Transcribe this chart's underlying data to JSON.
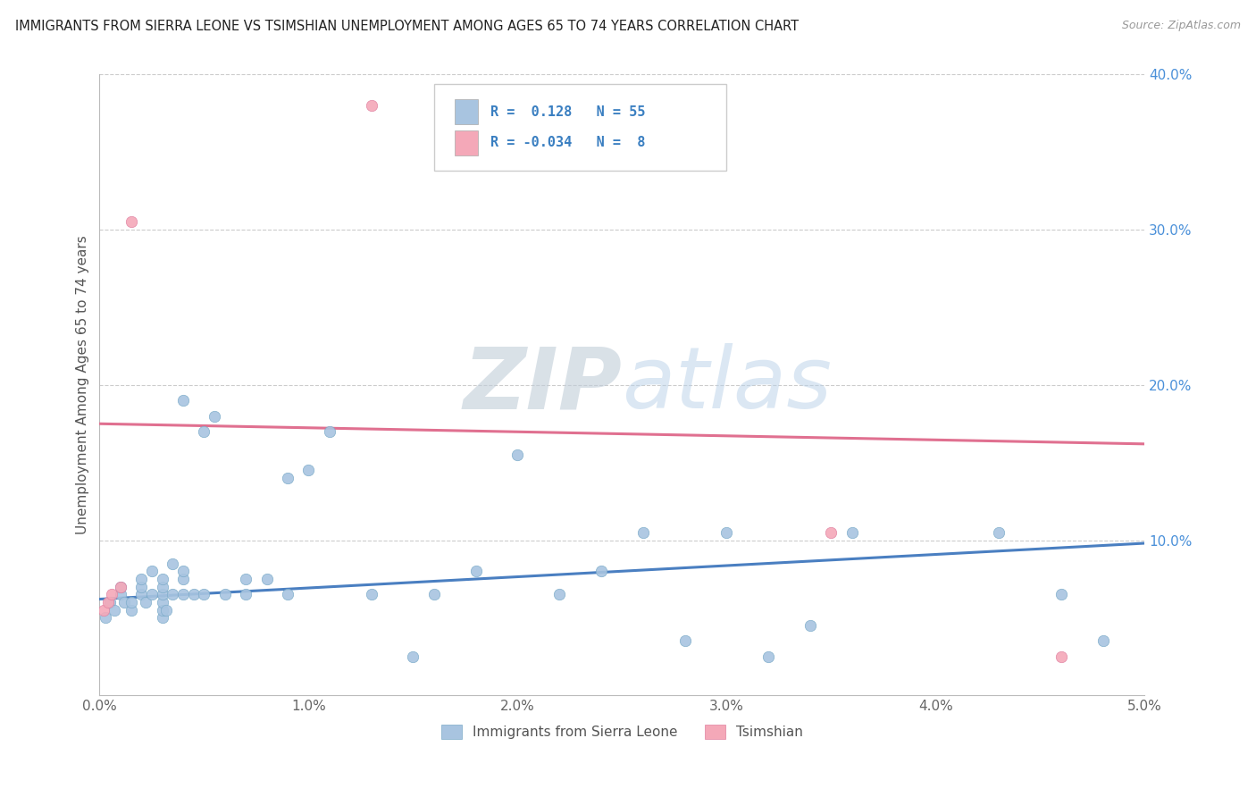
{
  "title": "IMMIGRANTS FROM SIERRA LEONE VS TSIMSHIAN UNEMPLOYMENT AMONG AGES 65 TO 74 YEARS CORRELATION CHART",
  "source": "Source: ZipAtlas.com",
  "ylabel": "Unemployment Among Ages 65 to 74 years",
  "xlim": [
    0.0,
    0.05
  ],
  "ylim": [
    0.0,
    0.4
  ],
  "xticks": [
    0.0,
    0.01,
    0.02,
    0.03,
    0.04,
    0.05
  ],
  "xticklabels": [
    "0.0%",
    "1.0%",
    "2.0%",
    "3.0%",
    "4.0%",
    "5.0%"
  ],
  "yticks": [
    0.0,
    0.1,
    0.2,
    0.3,
    0.4
  ],
  "yticklabels": [
    "",
    "10.0%",
    "20.0%",
    "30.0%",
    "40.0%"
  ],
  "legend_entries": [
    {
      "label": "Immigrants from Sierra Leone",
      "color": "#a8c4e0",
      "R": " 0.128",
      "N": "55"
    },
    {
      "label": "Tsimshian",
      "color": "#f4a8b8",
      "R": "-0.034",
      "N": " 8"
    }
  ],
  "blue_scatter_x": [
    0.0003,
    0.0005,
    0.0007,
    0.001,
    0.001,
    0.0012,
    0.0015,
    0.0015,
    0.002,
    0.002,
    0.002,
    0.0022,
    0.0025,
    0.0025,
    0.003,
    0.003,
    0.003,
    0.003,
    0.003,
    0.003,
    0.0032,
    0.0035,
    0.0035,
    0.004,
    0.004,
    0.004,
    0.004,
    0.0045,
    0.005,
    0.005,
    0.0055,
    0.006,
    0.007,
    0.007,
    0.008,
    0.009,
    0.009,
    0.01,
    0.011,
    0.013,
    0.015,
    0.016,
    0.018,
    0.02,
    0.022,
    0.024,
    0.026,
    0.028,
    0.03,
    0.032,
    0.034,
    0.036,
    0.043,
    0.046,
    0.048
  ],
  "blue_scatter_y": [
    0.05,
    0.06,
    0.055,
    0.065,
    0.07,
    0.06,
    0.055,
    0.06,
    0.065,
    0.07,
    0.075,
    0.06,
    0.065,
    0.08,
    0.05,
    0.055,
    0.06,
    0.065,
    0.07,
    0.075,
    0.055,
    0.065,
    0.085,
    0.065,
    0.075,
    0.08,
    0.19,
    0.065,
    0.17,
    0.065,
    0.18,
    0.065,
    0.065,
    0.075,
    0.075,
    0.065,
    0.14,
    0.145,
    0.17,
    0.065,
    0.025,
    0.065,
    0.08,
    0.155,
    0.065,
    0.08,
    0.105,
    0.035,
    0.105,
    0.025,
    0.045,
    0.105,
    0.105,
    0.065,
    0.035
  ],
  "pink_scatter_x": [
    0.0002,
    0.0004,
    0.0006,
    0.001,
    0.0015,
    0.013,
    0.046,
    0.035
  ],
  "pink_scatter_y": [
    0.055,
    0.06,
    0.065,
    0.07,
    0.305,
    0.38,
    0.025,
    0.105
  ],
  "blue_line_x0": 0.0,
  "blue_line_y0": 0.062,
  "blue_line_x1": 0.05,
  "blue_line_y1": 0.098,
  "pink_line_x0": 0.0,
  "pink_line_y0": 0.175,
  "pink_line_x1": 0.05,
  "pink_line_y1": 0.162,
  "blue_line_color": "#4a7fc1",
  "pink_line_color": "#e07090",
  "watermark_zip": "ZIP",
  "watermark_atlas": "atlas",
  "watermark_color_zip": "#c8d8e8",
  "watermark_color_atlas": "#b8cce0",
  "background_color": "#ffffff",
  "grid_color": "#cccccc"
}
